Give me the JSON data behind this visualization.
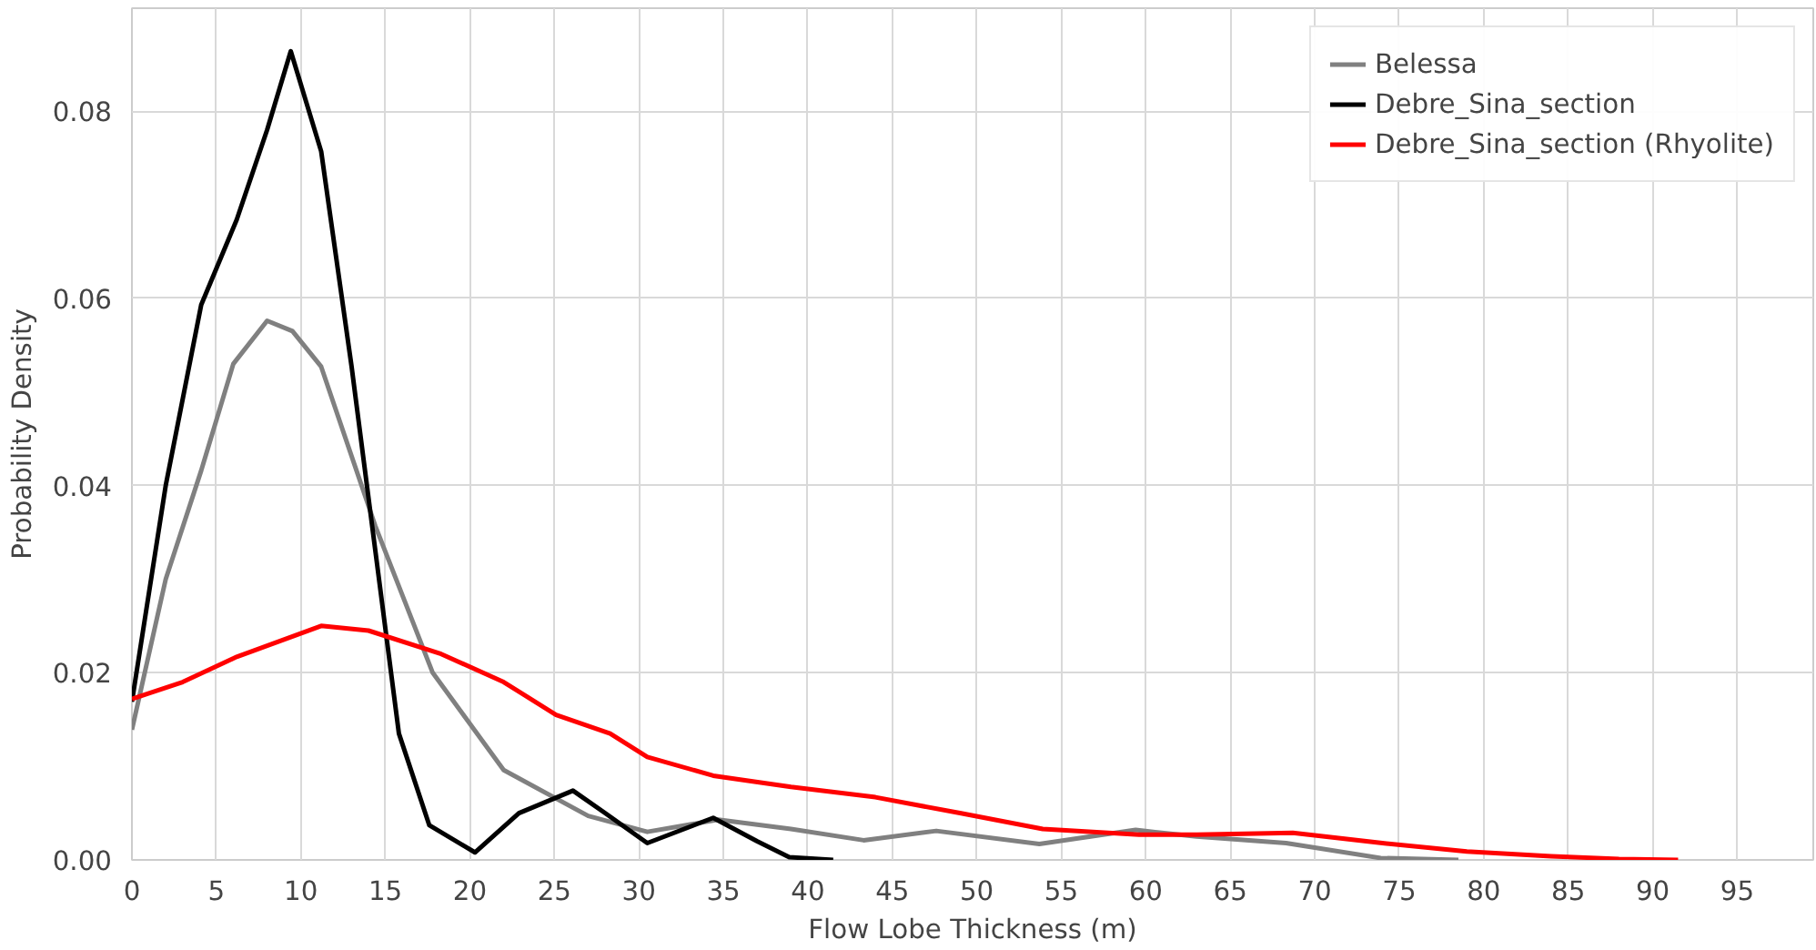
{
  "chart_data": {
    "type": "line",
    "xlabel": "Flow Lobe Thickness (m)",
    "ylabel": "Probability Density",
    "xlim": [
      0,
      99.5
    ],
    "ylim": [
      0,
      0.091
    ],
    "xticks": [
      0,
      5,
      10,
      15,
      20,
      25,
      30,
      35,
      40,
      45,
      50,
      55,
      60,
      65,
      70,
      75,
      80,
      85,
      90,
      95
    ],
    "yticks": [
      {
        "value": 0,
        "label": "0.00"
      },
      {
        "value": 0.02,
        "label": "0.02"
      },
      {
        "value": 0.04,
        "label": "0.04"
      },
      {
        "value": 0.06,
        "label": "0.06"
      },
      {
        "value": 0.08,
        "label": "0.08"
      }
    ],
    "grid": true,
    "legend": "top right",
    "line_style": "solid",
    "series": [
      {
        "name": "Belessa",
        "color": "#808080",
        "x": [
          0,
          2,
          4.1,
          6,
          8,
          9.5,
          11.2,
          14.4,
          17.8,
          22,
          27,
          30.5,
          34.7,
          39,
          43.3,
          47.6,
          53.7,
          59.4,
          63,
          68.3,
          73.9,
          78.5
        ],
        "values": [
          0.0139,
          0.03,
          0.0416,
          0.053,
          0.0576,
          0.0565,
          0.0527,
          0.0357,
          0.02,
          0.0096,
          0.0047,
          0.003,
          0.0043,
          0.0033,
          0.0021,
          0.0031,
          0.0017,
          0.0032,
          0.0025,
          0.0018,
          0.0002,
          0.0
        ]
      },
      {
        "name": "Debre_Sina_section",
        "color": "#000000",
        "x": [
          0,
          2,
          4.1,
          6.2,
          8,
          9.4,
          11.2,
          13,
          14.4,
          15.8,
          17.6,
          20.3,
          22.9,
          26.1,
          28,
          30.5,
          34.4,
          37,
          38.9,
          41.5
        ],
        "values": [
          0.0169,
          0.04,
          0.0593,
          0.0684,
          0.078,
          0.0864,
          0.0757,
          0.0527,
          0.0331,
          0.0135,
          0.0037,
          0.0008,
          0.005,
          0.0074,
          0.005,
          0.0018,
          0.0045,
          0.002,
          0.0003,
          0.0
        ]
      },
      {
        "name": "Debre_Sina_section (Rhyolite)",
        "color": "#ff0000",
        "x": [
          0,
          3,
          6.2,
          11.2,
          14,
          18.3,
          22,
          25.1,
          28.3,
          30.5,
          34.4,
          39,
          44,
          49,
          53.9,
          59.6,
          63,
          68.7,
          74,
          79,
          84,
          88,
          91.5
        ],
        "values": [
          0.0172,
          0.019,
          0.0217,
          0.025,
          0.0245,
          0.022,
          0.019,
          0.0155,
          0.0135,
          0.011,
          0.009,
          0.0078,
          0.0067,
          0.005,
          0.0033,
          0.0027,
          0.0027,
          0.0029,
          0.0018,
          0.0009,
          0.0004,
          0.0001,
          0.0
        ]
      }
    ]
  }
}
